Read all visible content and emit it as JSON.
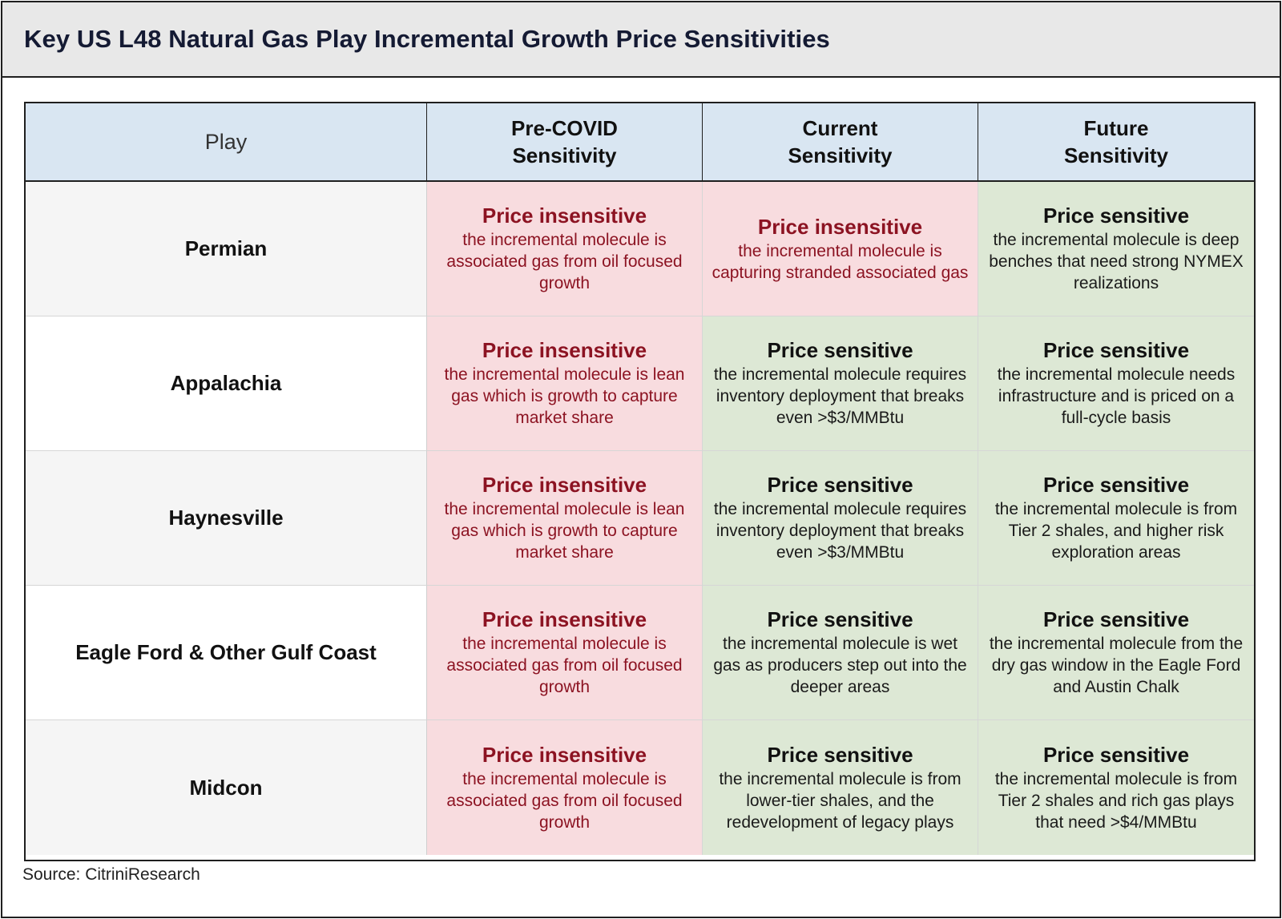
{
  "title": "Key US L48 Natural Gas Play Incremental Growth Price Sensitivities",
  "columns": [
    "Play",
    "Pre-COVID Sensitivity",
    "Current Sensitivity",
    "Future Sensitivity"
  ],
  "columns_lines": [
    [
      "Play"
    ],
    [
      "Pre-COVID",
      "Sensitivity"
    ],
    [
      "Current",
      "Sensitivity"
    ],
    [
      "Future",
      "Sensitivity"
    ]
  ],
  "rows": [
    {
      "play": "Permian",
      "cells": [
        {
          "status": "Price insensitive",
          "desc": "the incremental molecule is associated gas from oil focused growth"
        },
        {
          "status": "Price insensitive",
          "desc": "the incremental molecule is capturing stranded associated gas"
        },
        {
          "status": "Price sensitive",
          "desc": "the incremental molecule is deep benches that need strong NYMEX realizations"
        }
      ]
    },
    {
      "play": "Appalachia",
      "cells": [
        {
          "status": "Price insensitive",
          "desc": "the incremental molecule is lean gas which is growth to capture market share"
        },
        {
          "status": "Price sensitive",
          "desc": "the incremental molecule requires inventory deployment that breaks even >$3/MMBtu"
        },
        {
          "status": "Price sensitive",
          "desc": "the incremental molecule needs infrastructure and is priced on a full-cycle basis"
        }
      ]
    },
    {
      "play": "Haynesville",
      "cells": [
        {
          "status": "Price insensitive",
          "desc": "the incremental molecule is lean gas which is growth to capture market share"
        },
        {
          "status": "Price sensitive",
          "desc": "the incremental molecule requires inventory deployment that breaks even >$3/MMBtu"
        },
        {
          "status": "Price sensitive",
          "desc": "the incremental molecule is from Tier 2 shales, and higher risk exploration areas"
        }
      ]
    },
    {
      "play": "Eagle Ford & Other Gulf Coast",
      "cells": [
        {
          "status": "Price insensitive",
          "desc": "the incremental molecule is associated gas from oil focused growth"
        },
        {
          "status": "Price sensitive",
          "desc": "the incremental molecule is wet gas as producers step out into the deeper areas"
        },
        {
          "status": "Price sensitive",
          "desc": "the incremental molecule from the dry gas window in the Eagle Ford and Austin Chalk"
        }
      ]
    },
    {
      "play": "Midcon",
      "cells": [
        {
          "status": "Price insensitive",
          "desc": "the incremental molecule is associated gas from oil focused growth"
        },
        {
          "status": "Price sensitive",
          "desc": "the incremental molecule is from lower-tier shales, and the redevelopment of legacy plays"
        },
        {
          "status": "Price sensitive",
          "desc": "the incremental molecule is from Tier 2 shales and rich gas plays that need >$4/MMBtu"
        }
      ]
    }
  ],
  "source": "Source: CitriniResearch",
  "colors": {
    "insensitive_bg": "#f8dcdf",
    "insensitive_text": "#8c1322",
    "sensitive_bg": "#dde8d5",
    "header_bg": "#d9e6f2",
    "title_bg": "#e8e8e8"
  }
}
